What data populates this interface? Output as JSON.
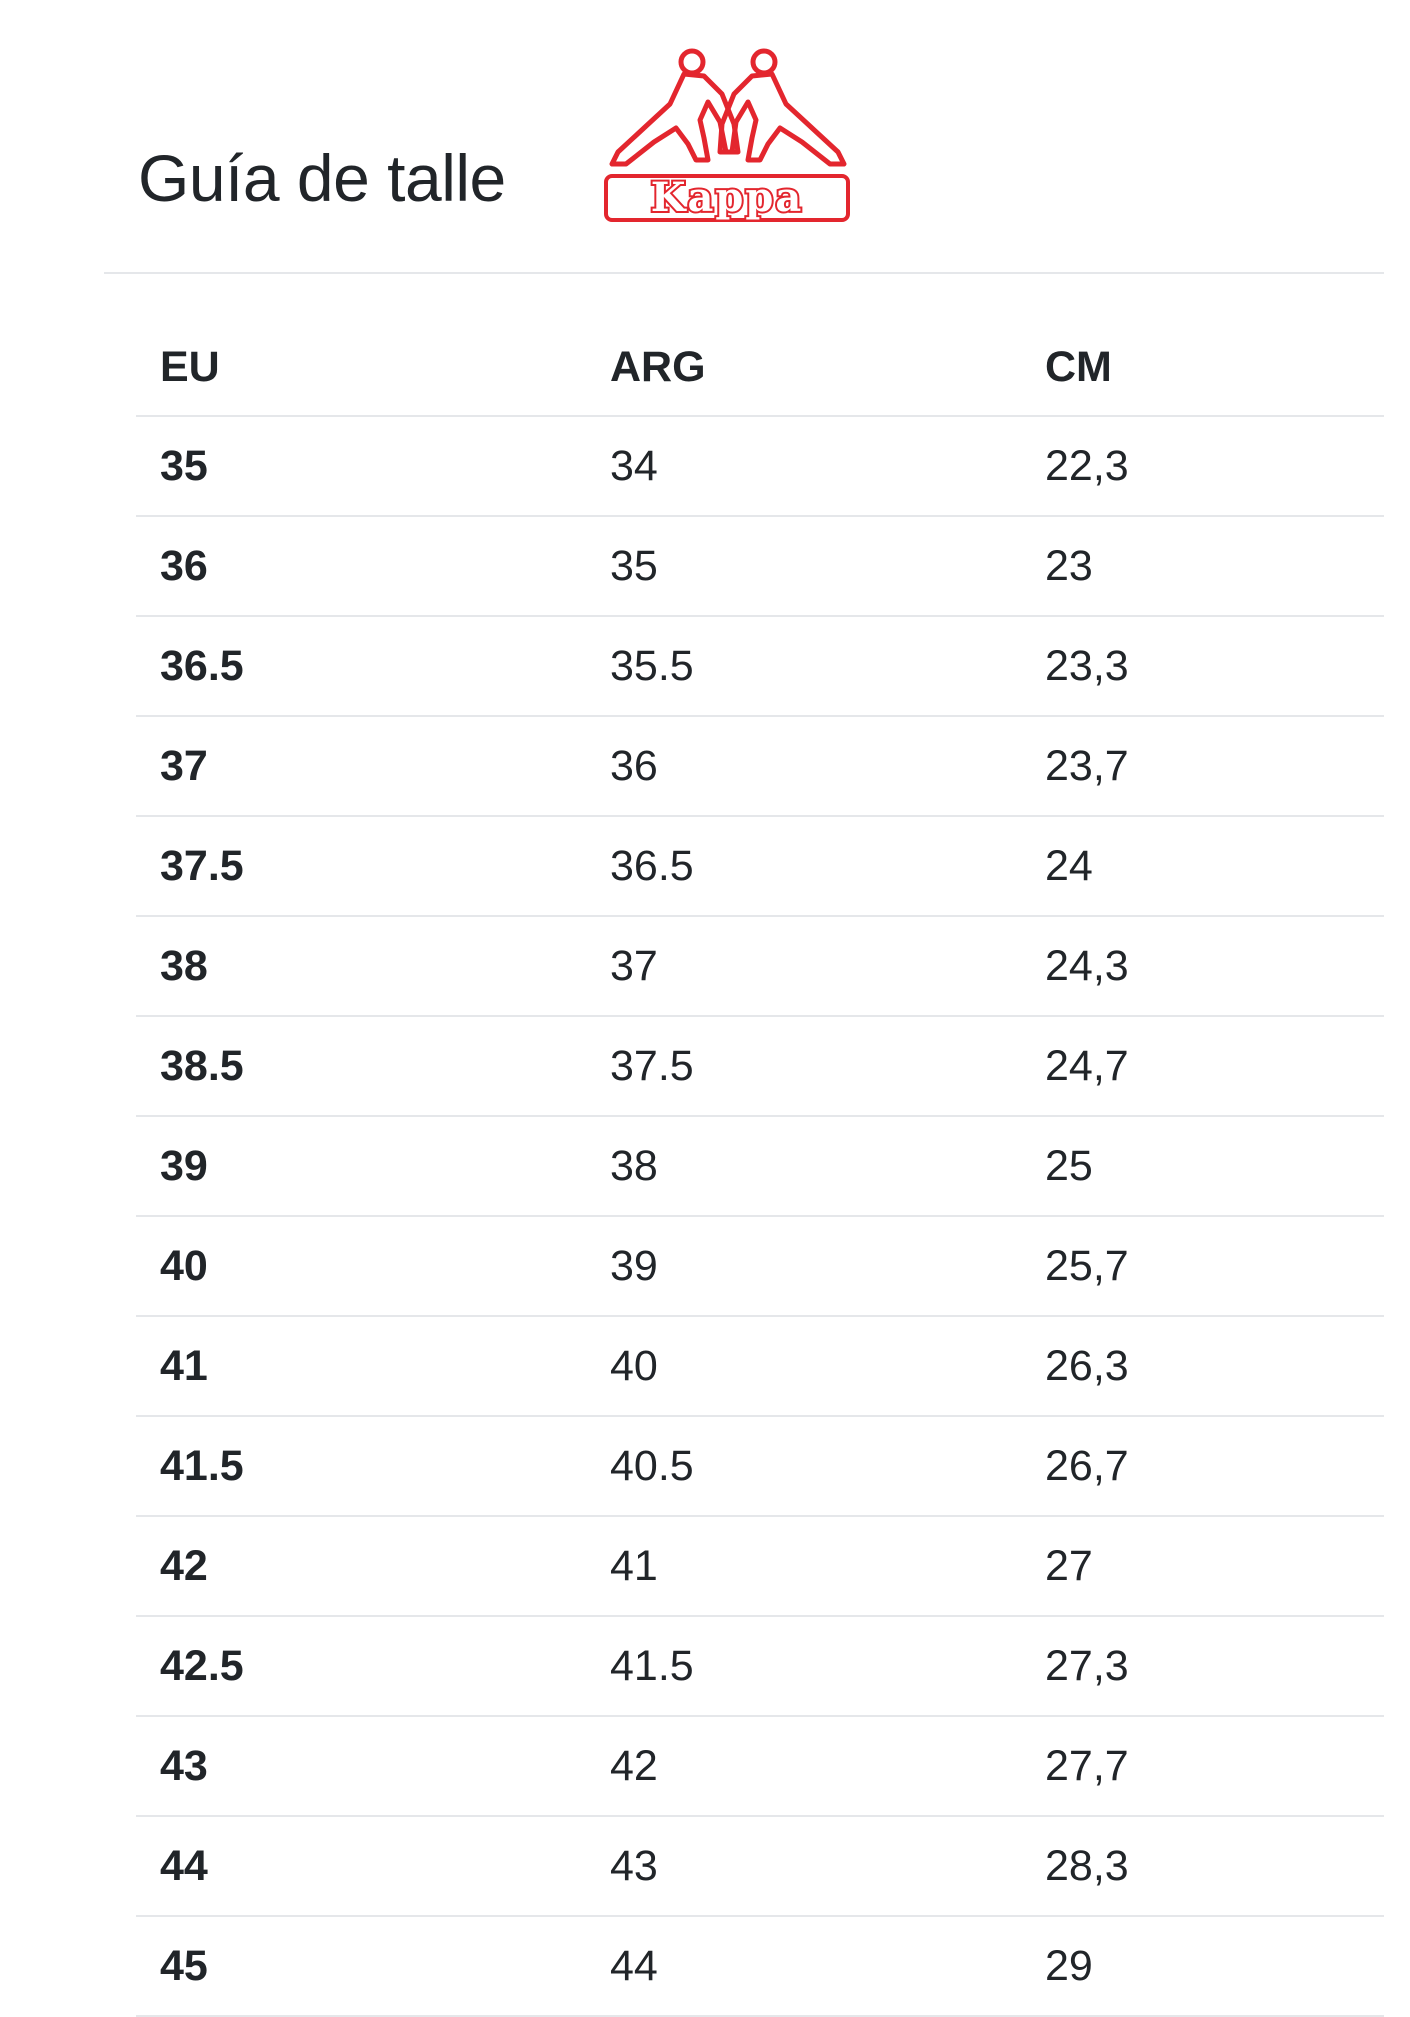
{
  "page": {
    "title": "Guía de talle",
    "logo": {
      "icon": "kappa-logo-icon",
      "text": "Kappa",
      "color": "#e3262e"
    }
  },
  "table": {
    "headers": [
      "EU",
      "ARG",
      "CM"
    ],
    "rows": [
      [
        "35",
        "34",
        "22,3"
      ],
      [
        "36",
        "35",
        "23"
      ],
      [
        "36.5",
        "35.5",
        "23,3"
      ],
      [
        "37",
        "36",
        "23,7"
      ],
      [
        "37.5",
        "36.5",
        "24"
      ],
      [
        "38",
        "37",
        "24,3"
      ],
      [
        "38.5",
        "37.5",
        "24,7"
      ],
      [
        "39",
        "38",
        "25"
      ],
      [
        "40",
        "39",
        "25,7"
      ],
      [
        "41",
        "40",
        "26,3"
      ],
      [
        "41.5",
        "40.5",
        "26,7"
      ],
      [
        "42",
        "41",
        "27"
      ],
      [
        "42.5",
        "41.5",
        "27,3"
      ],
      [
        "43",
        "42",
        "27,7"
      ],
      [
        "44",
        "43",
        "28,3"
      ],
      [
        "45",
        "44",
        "29"
      ]
    ]
  }
}
